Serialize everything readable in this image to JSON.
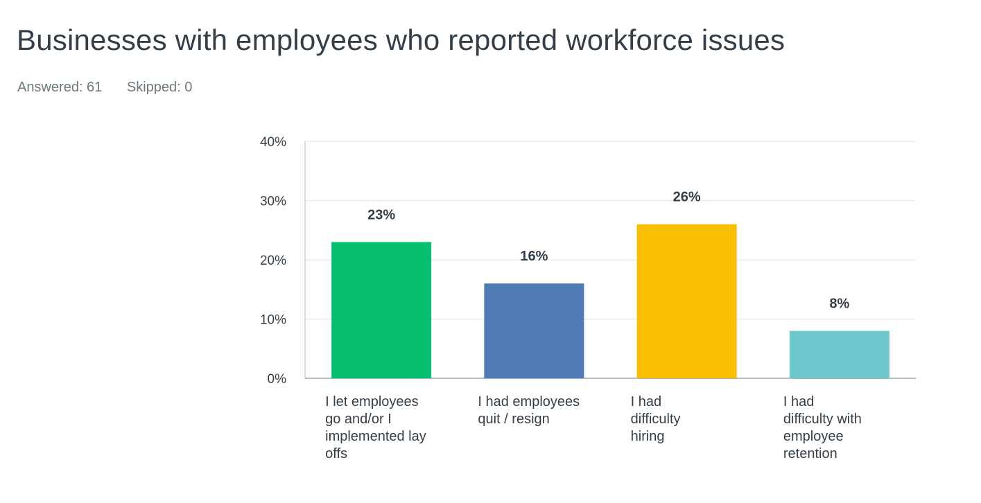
{
  "header": {
    "title": "Businesses with employees who reported workforce issues",
    "answered": "Answered: 61",
    "skipped": "Skipped: 0"
  },
  "chart_data": {
    "type": "bar",
    "categories": [
      "I let employees go and/or I implemented lay offs",
      "I had employees quit / resign",
      "I had difficulty hiring",
      "I had difficulty with employee retention"
    ],
    "category_lines": [
      [
        "I let employees",
        "go and/or I",
        "implemented lay",
        "offs"
      ],
      [
        "I had employees",
        "quit / resign"
      ],
      [
        "I had",
        "difficulty",
        "hiring"
      ],
      [
        "I had",
        "difficulty with",
        "employee",
        "retention"
      ]
    ],
    "values": [
      23,
      16,
      26,
      8
    ],
    "data_labels": [
      "23%",
      "16%",
      "26%",
      "8%"
    ],
    "colors": [
      "#05bf6e",
      "#507cb6",
      "#f8be00",
      "#6cc8cc"
    ],
    "yticks": [
      "0%",
      "10%",
      "20%",
      "30%",
      "40%"
    ],
    "ylim": [
      0,
      40
    ],
    "grid": true
  }
}
